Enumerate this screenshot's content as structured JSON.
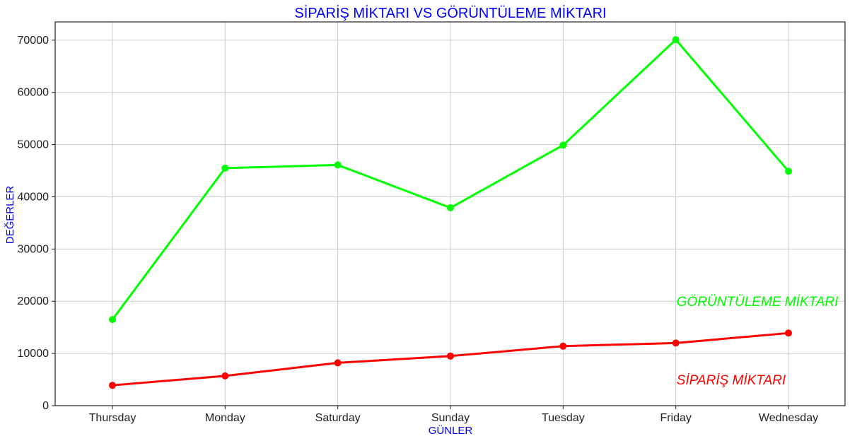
{
  "colors": {
    "title": "#0000ff",
    "axis_label": "#0000ff",
    "grid": "#cccccc",
    "axis": "#222222"
  },
  "chart_data": {
    "type": "line",
    "title": "SİPARİŞ MİKTARI  VS  GÖRÜNTÜLEME MİKTARI",
    "xlabel": "GÜNLER",
    "ylabel": "DEĞERLER",
    "categories": [
      "Thursday",
      "Monday",
      "Saturday",
      "Sunday",
      "Tuesday",
      "Friday",
      "Wednesday"
    ],
    "ylim": [
      0,
      73500
    ],
    "yticks": [
      0,
      10000,
      20000,
      30000,
      40000,
      50000,
      60000,
      70000
    ],
    "grid": true,
    "series": [
      {
        "name": "GÖRÜNTÜLEME MİKTARI",
        "color": "#00ff00",
        "values": [
          16500,
          45500,
          46100,
          37900,
          49900,
          70100,
          44900
        ]
      },
      {
        "name": "SİPARİŞ MİKTARI",
        "color": "#ff0000",
        "values": [
          3900,
          5700,
          8200,
          9500,
          11400,
          12000,
          13900
        ]
      }
    ],
    "annotations": [
      {
        "text": "GÖRÜNTÜLEME MİKTARI",
        "x": "Friday",
        "y": 20000,
        "color": "#00ff00"
      },
      {
        "text": "SİPARİŞ MİKTARI",
        "x": "Friday",
        "y": 5000,
        "color": "#ff0000"
      }
    ]
  }
}
